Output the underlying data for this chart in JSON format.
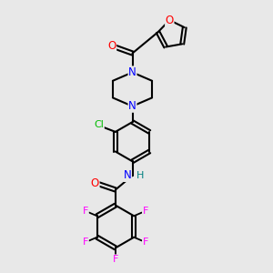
{
  "bg_color": "#e8e8e8",
  "bond_color": "#000000",
  "atom_colors": {
    "N": "#0000ff",
    "O": "#ff0000",
    "Cl": "#00bb00",
    "F": "#ff00ff",
    "H": "#008080",
    "C": "#000000"
  },
  "figsize": [
    3.0,
    3.0
  ],
  "dpi": 100,
  "xlim": [
    0,
    10
  ],
  "ylim": [
    0,
    10
  ]
}
